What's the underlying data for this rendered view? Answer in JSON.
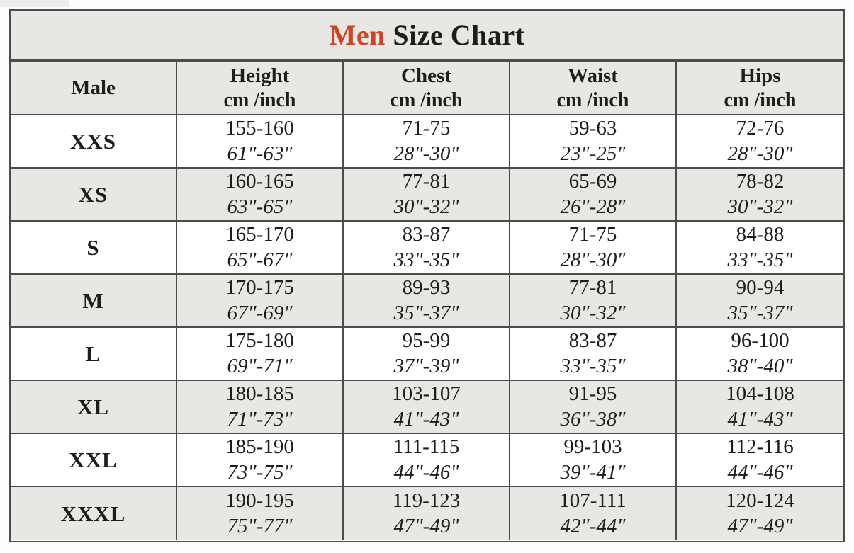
{
  "style": {
    "accent_red": "#ce4426",
    "band_gray": "#e9e7e4",
    "border_gray": "#4c4c4c",
    "text_black": "#1d1d1b"
  },
  "chart_data": {
    "type": "table",
    "title": "Men Size Chart",
    "title_highlight": "Men",
    "title_rest": " Size Chart",
    "columns": [
      {
        "label": "Male",
        "sub": ""
      },
      {
        "label": "Height",
        "sub": "cm /inch"
      },
      {
        "label": "Chest",
        "sub": "cm /inch"
      },
      {
        "label": "Waist",
        "sub": "cm /inch"
      },
      {
        "label": "Hips",
        "sub": "cm /inch"
      }
    ],
    "rows": [
      {
        "size": "XXS",
        "height_cm": "155-160",
        "height_in": "61\"-63\"",
        "chest_cm": "71-75",
        "chest_in": "28\"-30\"",
        "waist_cm": "59-63",
        "waist_in": "23\"-25\"",
        "hips_cm": "72-76",
        "hips_in": "28\"-30\"",
        "shaded": false
      },
      {
        "size": "XS",
        "height_cm": "160-165",
        "height_in": "63\"-65\"",
        "chest_cm": "77-81",
        "chest_in": "30\"-32\"",
        "waist_cm": "65-69",
        "waist_in": "26\"-28\"",
        "hips_cm": "78-82",
        "hips_in": "30\"-32\"",
        "shaded": true
      },
      {
        "size": "S",
        "height_cm": "165-170",
        "height_in": "65\"-67\"",
        "chest_cm": "83-87",
        "chest_in": "33\"-35\"",
        "waist_cm": "71-75",
        "waist_in": "28\"-30\"",
        "hips_cm": "84-88",
        "hips_in": "33\"-35\"",
        "shaded": false
      },
      {
        "size": "M",
        "height_cm": "170-175",
        "height_in": "67\"-69\"",
        "chest_cm": "89-93",
        "chest_in": "35\"-37\"",
        "waist_cm": "77-81",
        "waist_in": "30\"-32\"",
        "hips_cm": "90-94",
        "hips_in": "35\"-37\"",
        "shaded": true
      },
      {
        "size": "L",
        "height_cm": "175-180",
        "height_in": "69\"-71\"",
        "chest_cm": "95-99",
        "chest_in": "37\"-39\"",
        "waist_cm": "83-87",
        "waist_in": "33\"-35\"",
        "hips_cm": "96-100",
        "hips_in": "38\"-40\"",
        "shaded": false
      },
      {
        "size": "XL",
        "height_cm": "180-185",
        "height_in": "71\"-73\"",
        "chest_cm": "103-107",
        "chest_in": "41\"-43\"",
        "waist_cm": "91-95",
        "waist_in": "36\"-38\"",
        "hips_cm": "104-108",
        "hips_in": "41\"-43\"",
        "shaded": true
      },
      {
        "size": "XXL",
        "height_cm": "185-190",
        "height_in": "73\"-75\"",
        "chest_cm": "111-115",
        "chest_in": "44\"-46\"",
        "waist_cm": "99-103",
        "waist_in": "39\"-41\"",
        "hips_cm": "112-116",
        "hips_in": "44\"-46\"",
        "shaded": false
      },
      {
        "size": "XXXL",
        "height_cm": "190-195",
        "height_in": "75\"-77\"",
        "chest_cm": "119-123",
        "chest_in": "47\"-49\"",
        "waist_cm": "107-111",
        "waist_in": "42\"-44\"",
        "hips_cm": "120-124",
        "hips_in": "47\"-49\"",
        "shaded": true
      }
    ]
  }
}
